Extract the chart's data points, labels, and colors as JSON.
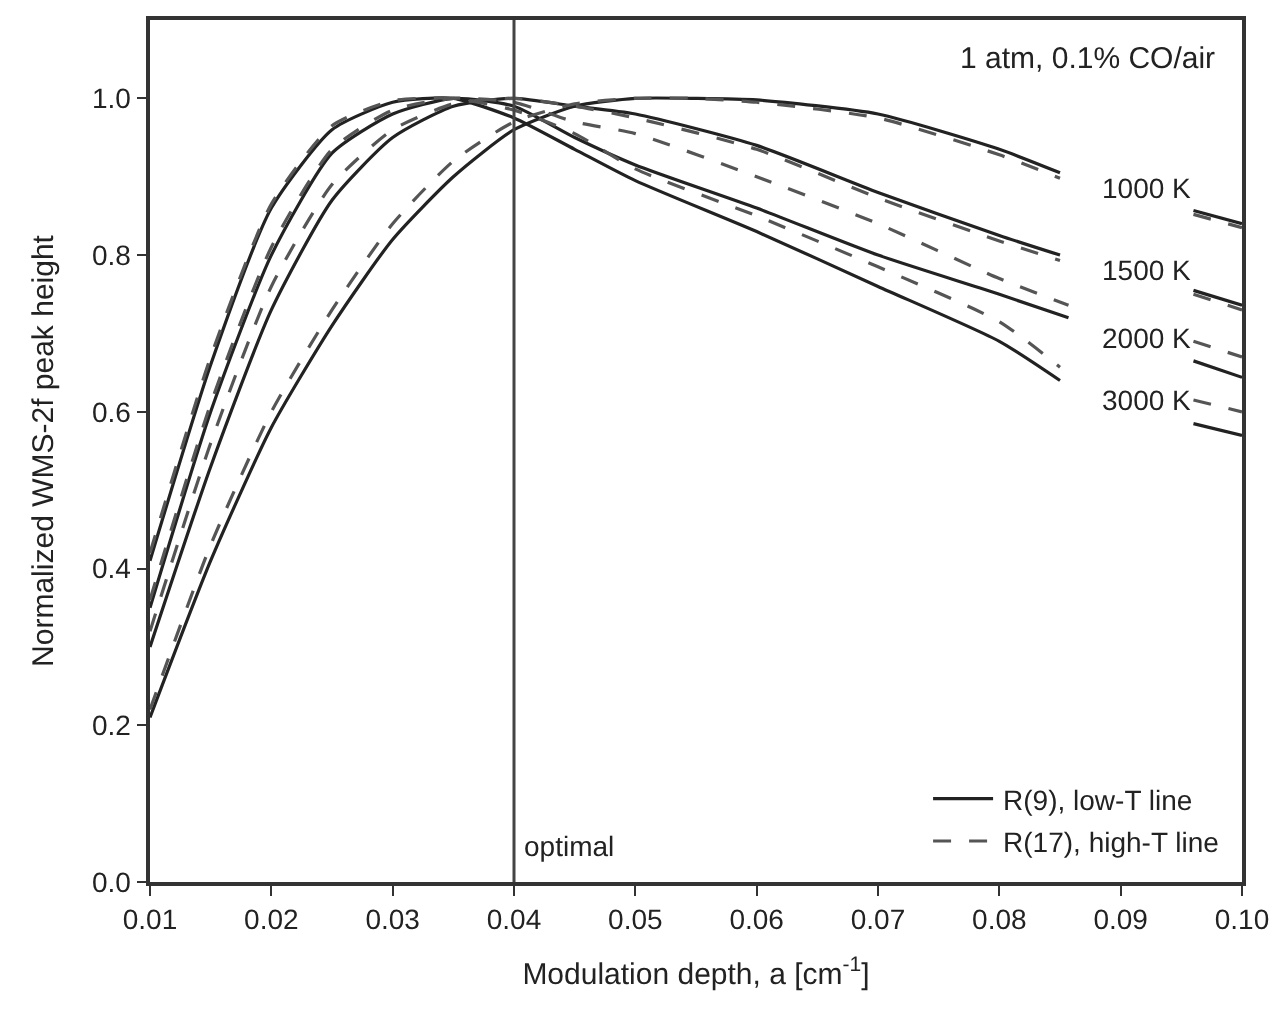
{
  "chart_data": {
    "type": "line",
    "xlabel": "Modulation depth, a [cm$^{-1}$]",
    "ylabel": "Normalized WMS-2f peak height",
    "xlim": [
      0.01,
      0.1
    ],
    "ylim": [
      0,
      1.1
    ],
    "xticks": [
      0.01,
      0.02,
      0.03,
      0.04,
      0.05,
      0.06,
      0.07,
      0.08,
      0.09,
      {
        "value": 0.1,
        "label": "0.10"
      }
    ],
    "yticks": [
      {
        "value": 0,
        "label": "0.0"
      },
      0.2,
      0.4,
      0.6,
      0.8,
      {
        "value": 1,
        "label": "1.0"
      }
    ],
    "legend": "bottom right",
    "marker": "none",
    "series": [
      {
        "name": "R(9), low-T line",
        "color": "#222222",
        "line_style": "solid",
        "x": [
          0.01,
          0.015,
          0.02,
          0.025,
          0.03,
          0.035,
          0.04,
          0.045,
          0.05,
          0.055,
          0.06,
          0.07,
          0.08,
          0.085,
          0.0895,
          0.096,
          0.1
        ],
        "values": [
          0.21,
          0.41,
          0.58,
          0.71,
          0.82,
          0.9,
          0.96,
          0.99,
          1.0,
          1.0,
          0.998,
          0.98,
          0.935,
          0.905,
          null,
          0.857,
          0.84
        ]
      },
      {
        "color": "#222222",
        "line_style": "solid",
        "x": [
          0.01,
          0.015,
          0.02,
          0.025,
          0.03,
          0.035,
          0.04,
          0.045,
          0.05,
          0.06,
          0.07,
          0.08,
          0.085,
          0.09,
          0.096,
          0.1
        ],
        "values": [
          0.3,
          0.53,
          0.73,
          0.87,
          0.95,
          0.99,
          1.0,
          0.99,
          0.98,
          0.94,
          0.88,
          0.825,
          0.8,
          null,
          0.755,
          0.736
        ]
      },
      {
        "color": "#222222",
        "line_style": "solid",
        "x": [
          0.01,
          0.015,
          0.02,
          0.025,
          0.03,
          0.035,
          0.04,
          0.045,
          0.05,
          0.06,
          0.07,
          0.08,
          0.0857,
          0.09,
          0.096,
          0.1
        ],
        "values": [
          0.35,
          0.6,
          0.8,
          0.93,
          0.98,
          1.0,
          0.99,
          0.95,
          0.915,
          0.86,
          0.8,
          0.75,
          0.72,
          null,
          0.665,
          0.644
        ]
      },
      {
        "color": "#222222",
        "line_style": "solid",
        "x": [
          0.01,
          0.015,
          0.02,
          0.025,
          0.03,
          0.035,
          0.04,
          0.045,
          0.05,
          0.06,
          0.07,
          0.08,
          0.085,
          0.09,
          0.096,
          0.1
        ],
        "values": [
          0.41,
          0.66,
          0.86,
          0.96,
          0.995,
          1.0,
          0.975,
          0.935,
          0.895,
          0.83,
          0.76,
          0.69,
          0.64,
          null,
          0.585,
          0.57
        ]
      },
      {
        "name": "R(17), high-T line",
        "color": "#555555",
        "line_style": "dashed",
        "x": [
          0.01,
          0.015,
          0.02,
          0.025,
          0.03,
          0.035,
          0.04,
          0.045,
          0.05,
          0.055,
          0.06,
          0.07,
          0.08,
          0.085,
          0.0895,
          0.096,
          0.1
        ],
        "values": [
          0.22,
          0.43,
          0.6,
          0.73,
          0.84,
          0.92,
          0.97,
          0.993,
          1.0,
          1.0,
          0.995,
          0.975,
          0.928,
          0.898,
          null,
          0.852,
          0.835
        ]
      },
      {
        "color": "#555555",
        "line_style": "dashed",
        "x": [
          0.01,
          0.015,
          0.02,
          0.025,
          0.03,
          0.035,
          0.04,
          0.045,
          0.05,
          0.06,
          0.07,
          0.08,
          0.085,
          0.09,
          0.096,
          0.1
        ],
        "values": [
          0.32,
          0.56,
          0.76,
          0.89,
          0.96,
          0.993,
          1.0,
          0.99,
          0.975,
          0.935,
          0.873,
          0.818,
          0.793,
          null,
          0.75,
          0.73
        ]
      },
      {
        "color": "#555555",
        "line_style": "dashed",
        "x": [
          0.01,
          0.015,
          0.02,
          0.025,
          0.03,
          0.035,
          0.04,
          0.045,
          0.05,
          0.06,
          0.07,
          0.08,
          0.0857,
          0.09,
          0.096,
          0.1
        ],
        "values": [
          0.36,
          0.61,
          0.81,
          0.935,
          0.985,
          1.0,
          0.995,
          0.97,
          0.955,
          0.9,
          0.84,
          0.77,
          0.736,
          null,
          0.69,
          0.67
        ]
      },
      {
        "color": "#555555",
        "line_style": "dashed",
        "x": [
          0.01,
          0.015,
          0.02,
          0.025,
          0.03,
          0.035,
          0.04,
          0.045,
          0.05,
          0.06,
          0.07,
          0.08,
          0.085,
          0.09,
          0.096,
          0.1
        ],
        "values": [
          0.42,
          0.67,
          0.865,
          0.965,
          0.997,
          1.0,
          0.985,
          0.955,
          0.91,
          0.85,
          0.785,
          0.715,
          0.657,
          null,
          0.615,
          0.6
        ]
      }
    ],
    "ref_lines": [
      {
        "axis": "x",
        "value": 0.04,
        "label": "optimal",
        "color": "#444444"
      }
    ],
    "annotations": [
      "1 atm, 0.1% CO/air",
      "1000 K",
      "1500 K",
      "2000 K",
      "3000 K"
    ]
  }
}
